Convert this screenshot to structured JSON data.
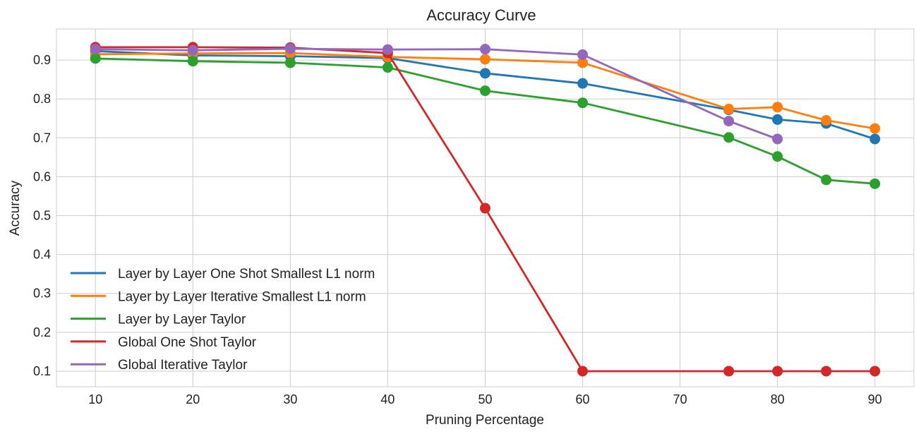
{
  "chart_data": {
    "type": "line",
    "title": "Accuracy Curve",
    "xlabel": "Pruning Percentage",
    "ylabel": "Accuracy",
    "x": [
      10,
      20,
      30,
      40,
      50,
      60,
      75,
      80,
      85,
      90
    ],
    "xlim": [
      6,
      94
    ],
    "ylim": [
      0.06,
      0.98
    ],
    "xticks": [
      10,
      20,
      30,
      40,
      50,
      60,
      70,
      80,
      90
    ],
    "xtick_labels": [
      "10",
      "20",
      "30",
      "40",
      "50",
      "60",
      "70",
      "80",
      "90"
    ],
    "yticks": [
      0.1,
      0.2,
      0.3,
      0.4,
      0.5,
      0.6,
      0.7,
      0.8,
      0.9
    ],
    "ytick_labels": [
      "0.1",
      "0.2",
      "0.3",
      "0.4",
      "0.5",
      "0.6",
      "0.7",
      "0.8",
      "0.9"
    ],
    "grid": true,
    "legend_position": "lower-left",
    "series": [
      {
        "name": "Layer by Layer One Shot Smallest L1 norm",
        "color": "#1f77b4",
        "x": [
          10,
          20,
          30,
          40,
          50,
          60,
          75,
          80,
          85,
          90
        ],
        "values": [
          0.923,
          0.912,
          0.91,
          0.905,
          0.866,
          0.84,
          0.772,
          0.747,
          0.737,
          0.697
        ]
      },
      {
        "name": "Layer by Layer Iterative Smallest L1 norm",
        "color": "#ff7f0e",
        "x": [
          10,
          20,
          30,
          40,
          50,
          60,
          75,
          80,
          85,
          90
        ],
        "values": [
          0.915,
          0.917,
          0.918,
          0.908,
          0.902,
          0.893,
          0.774,
          0.779,
          0.745,
          0.724
        ]
      },
      {
        "name": "Layer by Layer Taylor",
        "color": "#2ca02c",
        "x": [
          10,
          20,
          30,
          40,
          50,
          60,
          75,
          80,
          85,
          90
        ],
        "values": [
          0.904,
          0.897,
          0.893,
          0.881,
          0.821,
          0.79,
          0.701,
          0.652,
          0.592,
          0.582
        ]
      },
      {
        "name": "Global One Shot Taylor",
        "color": "#d62728",
        "x": [
          10,
          20,
          30,
          40,
          50,
          60,
          75,
          80,
          85,
          90
        ],
        "values": [
          0.933,
          0.933,
          0.932,
          0.918,
          0.519,
          0.1,
          0.1,
          0.1,
          0.1,
          0.1
        ]
      },
      {
        "name": "Global Iterative Taylor",
        "color": "#9467bd",
        "x": [
          10,
          20,
          30,
          40,
          50,
          60,
          75,
          80
        ],
        "values": [
          0.928,
          0.925,
          0.929,
          0.927,
          0.928,
          0.914,
          0.743,
          0.697
        ]
      }
    ]
  }
}
